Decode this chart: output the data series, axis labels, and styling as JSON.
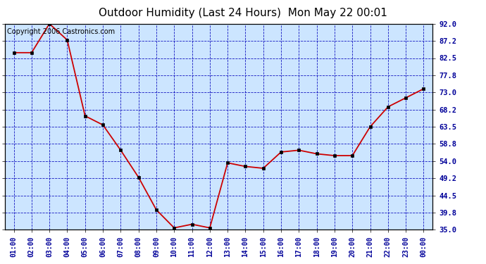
{
  "title": "Outdoor Humidity (Last 24 Hours)  Mon May 22 00:01",
  "x_labels": [
    "01:00",
    "02:00",
    "03:00",
    "04:00",
    "05:00",
    "06:00",
    "07:00",
    "08:00",
    "09:00",
    "10:00",
    "11:00",
    "12:00",
    "13:00",
    "14:00",
    "15:00",
    "16:00",
    "17:00",
    "18:00",
    "19:00",
    "20:00",
    "21:00",
    "22:00",
    "23:00",
    "00:00"
  ],
  "y_values": [
    84.0,
    84.0,
    92.0,
    87.5,
    66.5,
    64.0,
    57.0,
    49.5,
    40.5,
    35.5,
    36.5,
    35.5,
    53.5,
    52.5,
    52.0,
    56.5,
    57.0,
    56.0,
    55.5,
    55.5,
    63.5,
    69.0,
    71.5,
    74.0
  ],
  "y_ticks": [
    35.0,
    39.8,
    44.5,
    49.2,
    54.0,
    58.8,
    63.5,
    68.2,
    73.0,
    77.8,
    82.5,
    87.2,
    92.0
  ],
  "ylim": [
    35.0,
    92.0
  ],
  "line_color": "#cc0000",
  "marker_color": "#cc0000",
  "bg_color": "#cce5ff",
  "grid_color": "#0000bb",
  "border_color": "#000000",
  "title_fontsize": 11,
  "tick_label_color": "#000099",
  "copyright_text": "Copyright 2006 Castronics.com",
  "copyright_fontsize": 7
}
